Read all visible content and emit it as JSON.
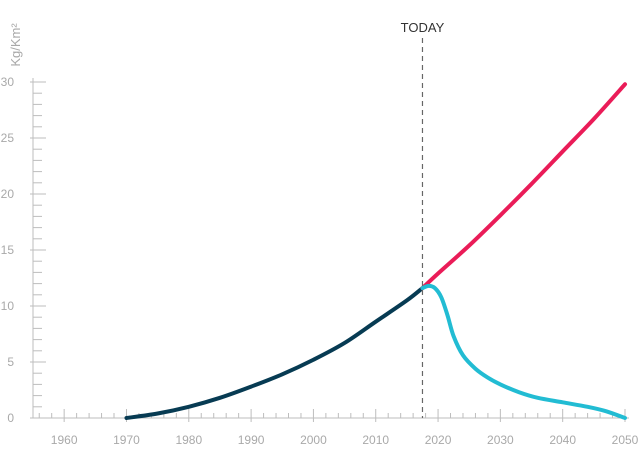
{
  "chart_data": {
    "type": "line",
    "ylabel": "Kg/Km²",
    "xlim": [
      1955,
      2050
    ],
    "ylim": [
      0,
      30
    ],
    "x_ticks": [
      1960,
      1970,
      1980,
      1990,
      2000,
      2010,
      2020,
      2030,
      2040,
      2050
    ],
    "y_ticks": [
      0,
      5,
      10,
      15,
      20,
      25,
      30
    ],
    "x_tick_labels": [
      "1960",
      "1970",
      "1980",
      "1990",
      "2000",
      "2010",
      "2020",
      "2030",
      "2040",
      "2050"
    ],
    "y_tick_labels": [
      "0",
      "5",
      "10",
      "15",
      "20",
      "25",
      "30"
    ],
    "grid": false,
    "annotation": {
      "label": "TODAY",
      "x": 2017.5
    },
    "series": [
      {
        "color": "#073b53",
        "points": [
          [
            1970,
            0
          ],
          [
            1975,
            0.4
          ],
          [
            1980,
            1.0
          ],
          [
            1985,
            1.8
          ],
          [
            1990,
            2.8
          ],
          [
            1995,
            3.9
          ],
          [
            2000,
            5.2
          ],
          [
            2005,
            6.7
          ],
          [
            2010,
            8.6
          ],
          [
            2015,
            10.5
          ],
          [
            2017.5,
            11.6
          ]
        ]
      },
      {
        "color": "#ea1c58",
        "points": [
          [
            2017.5,
            11.6
          ],
          [
            2020,
            12.9
          ],
          [
            2025,
            15.4
          ],
          [
            2030,
            18.1
          ],
          [
            2035,
            20.9
          ],
          [
            2040,
            23.8
          ],
          [
            2045,
            26.7
          ],
          [
            2050,
            29.8
          ]
        ]
      },
      {
        "color": "#22bcd3",
        "points": [
          [
            2017.5,
            11.6
          ],
          [
            2018.5,
            11.8
          ],
          [
            2019.5,
            11.6
          ],
          [
            2020.5,
            10.8
          ],
          [
            2021.5,
            9.2
          ],
          [
            2022.5,
            7.3
          ],
          [
            2024,
            5.6
          ],
          [
            2026,
            4.4
          ],
          [
            2028,
            3.6
          ],
          [
            2030,
            3.0
          ],
          [
            2033,
            2.3
          ],
          [
            2036,
            1.8
          ],
          [
            2040,
            1.4
          ],
          [
            2044,
            1.0
          ],
          [
            2047,
            0.6
          ],
          [
            2050,
            0.0
          ]
        ]
      }
    ]
  }
}
